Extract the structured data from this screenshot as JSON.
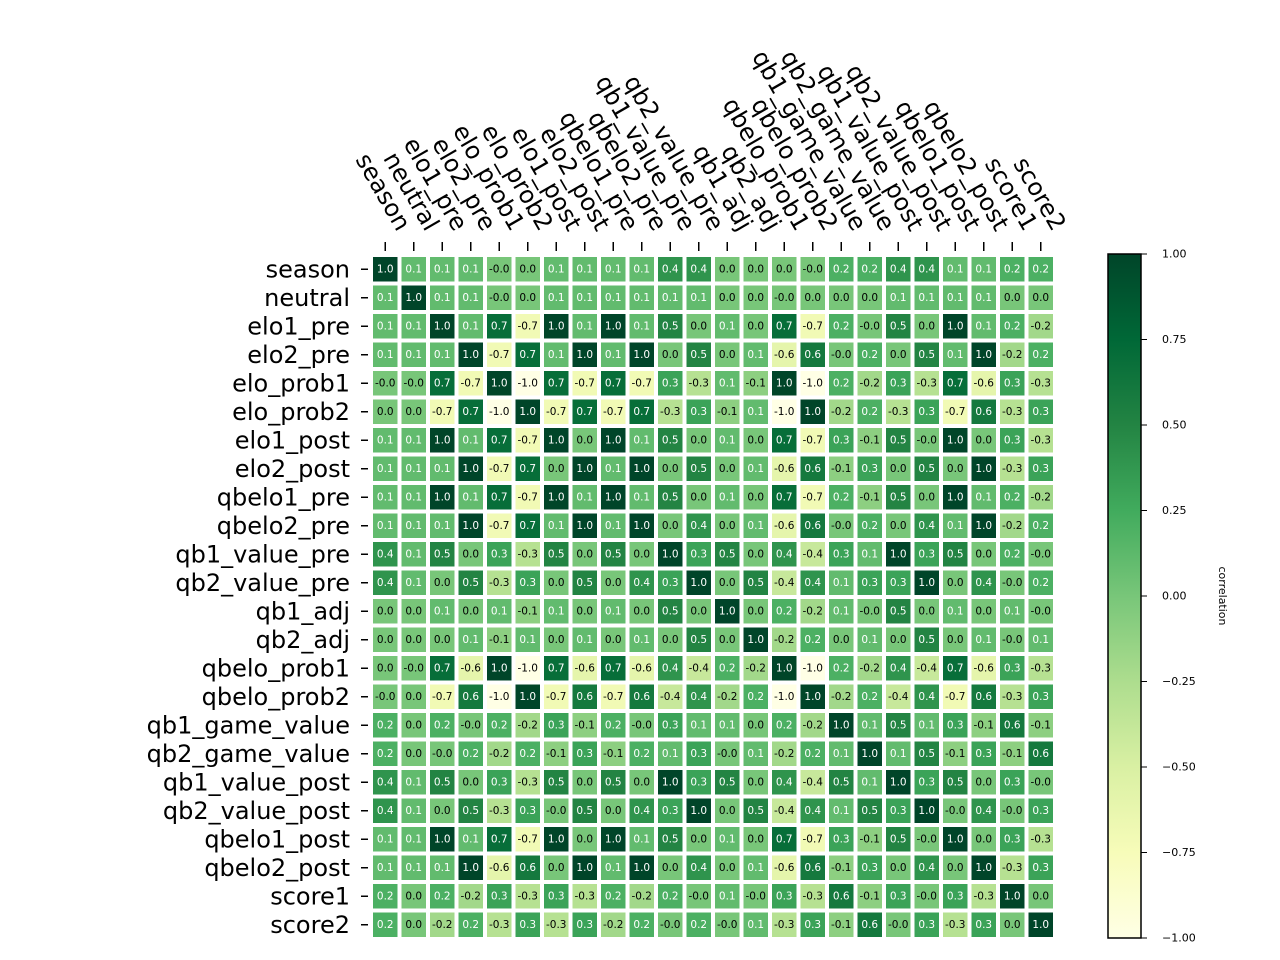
{
  "chart_data": {
    "type": "heatmap",
    "variables": [
      "season",
      "neutral",
      "elo1_pre",
      "elo2_pre",
      "elo_prob1",
      "elo_prob2",
      "elo1_post",
      "elo2_post",
      "qbelo1_pre",
      "qbelo2_pre",
      "qb1_value_pre",
      "qb2_value_pre",
      "qb1_adj",
      "qb2_adj",
      "qbelo_prob1",
      "qbelo_prob2",
      "qb1_game_value",
      "qb2_game_value",
      "qb1_value_post",
      "qb2_value_post",
      "qbelo1_post",
      "qbelo2_post",
      "score1",
      "score2"
    ],
    "cell_labels": [
      [
        "1.0",
        "0.1",
        "0.1",
        "0.1",
        "-0.0",
        "0.0",
        "0.1",
        "0.1",
        "0.1",
        "0.1",
        "0.4",
        "0.4",
        "0.0",
        "0.0",
        "0.0",
        "-0.0",
        "0.2",
        "0.2",
        "0.4",
        "0.4",
        "0.1",
        "0.1",
        "0.2",
        "0.2"
      ],
      [
        "0.1",
        "1.0",
        "0.1",
        "0.1",
        "-0.0",
        "0.0",
        "0.1",
        "0.1",
        "0.1",
        "0.1",
        "0.1",
        "0.1",
        "0.0",
        "0.0",
        "-0.0",
        "0.0",
        "0.0",
        "0.0",
        "0.1",
        "0.1",
        "0.1",
        "0.1",
        "0.0",
        "0.0"
      ],
      [
        "0.1",
        "0.1",
        "1.0",
        "0.1",
        "0.7",
        "-0.7",
        "1.0",
        "0.1",
        "1.0",
        "0.1",
        "0.5",
        "0.0",
        "0.1",
        "0.0",
        "0.7",
        "-0.7",
        "0.2",
        "-0.0",
        "0.5",
        "0.0",
        "1.0",
        "0.1",
        "0.2",
        "-0.2"
      ],
      [
        "0.1",
        "0.1",
        "0.1",
        "1.0",
        "-0.7",
        "0.7",
        "0.1",
        "1.0",
        "0.1",
        "1.0",
        "0.0",
        "0.5",
        "0.0",
        "0.1",
        "-0.6",
        "0.6",
        "-0.0",
        "0.2",
        "0.0",
        "0.5",
        "0.1",
        "1.0",
        "-0.2",
        "0.2"
      ],
      [
        "-0.0",
        "-0.0",
        "0.7",
        "-0.7",
        "1.0",
        "-1.0",
        "0.7",
        "-0.7",
        "0.7",
        "-0.7",
        "0.3",
        "-0.3",
        "0.1",
        "-0.1",
        "1.0",
        "-1.0",
        "0.2",
        "-0.2",
        "0.3",
        "-0.3",
        "0.7",
        "-0.6",
        "0.3",
        "-0.3"
      ],
      [
        "0.0",
        "0.0",
        "-0.7",
        "0.7",
        "-1.0",
        "1.0",
        "-0.7",
        "0.7",
        "-0.7",
        "0.7",
        "-0.3",
        "0.3",
        "-0.1",
        "0.1",
        "-1.0",
        "1.0",
        "-0.2",
        "0.2",
        "-0.3",
        "0.3",
        "-0.7",
        "0.6",
        "-0.3",
        "0.3"
      ],
      [
        "0.1",
        "0.1",
        "1.0",
        "0.1",
        "0.7",
        "-0.7",
        "1.0",
        "0.0",
        "1.0",
        "0.1",
        "0.5",
        "0.0",
        "0.1",
        "0.0",
        "0.7",
        "-0.7",
        "0.3",
        "-0.1",
        "0.5",
        "-0.0",
        "1.0",
        "0.0",
        "0.3",
        "-0.3"
      ],
      [
        "0.1",
        "0.1",
        "0.1",
        "1.0",
        "-0.7",
        "0.7",
        "0.0",
        "1.0",
        "0.1",
        "1.0",
        "0.0",
        "0.5",
        "0.0",
        "0.1",
        "-0.6",
        "0.6",
        "-0.1",
        "0.3",
        "0.0",
        "0.5",
        "0.0",
        "1.0",
        "-0.3",
        "0.3"
      ],
      [
        "0.1",
        "0.1",
        "1.0",
        "0.1",
        "0.7",
        "-0.7",
        "1.0",
        "0.1",
        "1.0",
        "0.1",
        "0.5",
        "0.0",
        "0.1",
        "0.0",
        "0.7",
        "-0.7",
        "0.2",
        "-0.1",
        "0.5",
        "0.0",
        "1.0",
        "0.1",
        "0.2",
        "-0.2"
      ],
      [
        "0.1",
        "0.1",
        "0.1",
        "1.0",
        "-0.7",
        "0.7",
        "0.1",
        "1.0",
        "0.1",
        "1.0",
        "0.0",
        "0.4",
        "0.0",
        "0.1",
        "-0.6",
        "0.6",
        "-0.0",
        "0.2",
        "0.0",
        "0.4",
        "0.1",
        "1.0",
        "-0.2",
        "0.2"
      ],
      [
        "0.4",
        "0.1",
        "0.5",
        "0.0",
        "0.3",
        "-0.3",
        "0.5",
        "0.0",
        "0.5",
        "0.0",
        "1.0",
        "0.3",
        "0.5",
        "0.0",
        "0.4",
        "-0.4",
        "0.3",
        "0.1",
        "1.0",
        "0.3",
        "0.5",
        "0.0",
        "0.2",
        "-0.0"
      ],
      [
        "0.4",
        "0.1",
        "0.0",
        "0.5",
        "-0.3",
        "0.3",
        "0.0",
        "0.5",
        "0.0",
        "0.4",
        "0.3",
        "1.0",
        "0.0",
        "0.5",
        "-0.4",
        "0.4",
        "0.1",
        "0.3",
        "0.3",
        "1.0",
        "0.0",
        "0.4",
        "-0.0",
        "0.2"
      ],
      [
        "0.0",
        "0.0",
        "0.1",
        "0.0",
        "0.1",
        "-0.1",
        "0.1",
        "0.0",
        "0.1",
        "0.0",
        "0.5",
        "0.0",
        "1.0",
        "0.0",
        "0.2",
        "-0.2",
        "0.1",
        "-0.0",
        "0.5",
        "0.0",
        "0.1",
        "0.0",
        "0.1",
        "-0.0"
      ],
      [
        "0.0",
        "0.0",
        "0.0",
        "0.1",
        "-0.1",
        "0.1",
        "0.0",
        "0.1",
        "0.0",
        "0.1",
        "0.0",
        "0.5",
        "0.0",
        "1.0",
        "-0.2",
        "0.2",
        "0.0",
        "0.1",
        "0.0",
        "0.5",
        "0.0",
        "0.1",
        "-0.0",
        "0.1"
      ],
      [
        "0.0",
        "-0.0",
        "0.7",
        "-0.6",
        "1.0",
        "-1.0",
        "0.7",
        "-0.6",
        "0.7",
        "-0.6",
        "0.4",
        "-0.4",
        "0.2",
        "-0.2",
        "1.0",
        "-1.0",
        "0.2",
        "-0.2",
        "0.4",
        "-0.4",
        "0.7",
        "-0.6",
        "0.3",
        "-0.3"
      ],
      [
        "-0.0",
        "0.0",
        "-0.7",
        "0.6",
        "-1.0",
        "1.0",
        "-0.7",
        "0.6",
        "-0.7",
        "0.6",
        "-0.4",
        "0.4",
        "-0.2",
        "0.2",
        "-1.0",
        "1.0",
        "-0.2",
        "0.2",
        "-0.4",
        "0.4",
        "-0.7",
        "0.6",
        "-0.3",
        "0.3"
      ],
      [
        "0.2",
        "0.0",
        "0.2",
        "-0.0",
        "0.2",
        "-0.2",
        "0.3",
        "-0.1",
        "0.2",
        "-0.0",
        "0.3",
        "0.1",
        "0.1",
        "0.0",
        "0.2",
        "-0.2",
        "1.0",
        "0.1",
        "0.5",
        "0.1",
        "0.3",
        "-0.1",
        "0.6",
        "-0.1"
      ],
      [
        "0.2",
        "0.0",
        "-0.0",
        "0.2",
        "-0.2",
        "0.2",
        "-0.1",
        "0.3",
        "-0.1",
        "0.2",
        "0.1",
        "0.3",
        "-0.0",
        "0.1",
        "-0.2",
        "0.2",
        "0.1",
        "1.0",
        "0.1",
        "0.5",
        "-0.1",
        "0.3",
        "-0.1",
        "0.6"
      ],
      [
        "0.4",
        "0.1",
        "0.5",
        "0.0",
        "0.3",
        "-0.3",
        "0.5",
        "0.0",
        "0.5",
        "0.0",
        "1.0",
        "0.3",
        "0.5",
        "0.0",
        "0.4",
        "-0.4",
        "0.5",
        "0.1",
        "1.0",
        "0.3",
        "0.5",
        "0.0",
        "0.3",
        "-0.0"
      ],
      [
        "0.4",
        "0.1",
        "0.0",
        "0.5",
        "-0.3",
        "0.3",
        "-0.0",
        "0.5",
        "0.0",
        "0.4",
        "0.3",
        "1.0",
        "0.0",
        "0.5",
        "-0.4",
        "0.4",
        "0.1",
        "0.5",
        "0.3",
        "1.0",
        "-0.0",
        "0.4",
        "-0.0",
        "0.3"
      ],
      [
        "0.1",
        "0.1",
        "1.0",
        "0.1",
        "0.7",
        "-0.7",
        "1.0",
        "0.0",
        "1.0",
        "0.1",
        "0.5",
        "0.0",
        "0.1",
        "0.0",
        "0.7",
        "-0.7",
        "0.3",
        "-0.1",
        "0.5",
        "-0.0",
        "1.0",
        "0.0",
        "0.3",
        "-0.3"
      ],
      [
        "0.1",
        "0.1",
        "0.1",
        "1.0",
        "-0.6",
        "0.6",
        "0.0",
        "1.0",
        "0.1",
        "1.0",
        "0.0",
        "0.4",
        "0.0",
        "0.1",
        "-0.6",
        "0.6",
        "-0.1",
        "0.3",
        "0.0",
        "0.4",
        "0.0",
        "1.0",
        "-0.3",
        "0.3"
      ],
      [
        "0.2",
        "0.0",
        "0.2",
        "-0.2",
        "0.3",
        "-0.3",
        "0.3",
        "-0.3",
        "0.2",
        "-0.2",
        "0.2",
        "-0.0",
        "0.1",
        "-0.0",
        "0.3",
        "-0.3",
        "0.6",
        "-0.1",
        "0.3",
        "-0.0",
        "0.3",
        "-0.3",
        "1.0",
        "0.0"
      ],
      [
        "0.2",
        "0.0",
        "-0.2",
        "0.2",
        "-0.3",
        "0.3",
        "-0.3",
        "0.3",
        "-0.2",
        "0.2",
        "-0.0",
        "0.2",
        "-0.0",
        "0.1",
        "-0.3",
        "0.3",
        "-0.1",
        "0.6",
        "-0.0",
        "0.3",
        "-0.3",
        "0.3",
        "0.0",
        "1.0"
      ]
    ],
    "colormap": "YlGn",
    "vmin": -1.0,
    "vmax": 1.0,
    "colorbar": {
      "label": "correlation",
      "ticks": [
        "1.00",
        "0.75",
        "0.50",
        "0.25",
        "0.00",
        "−0.25",
        "−0.50",
        "−0.75",
        "−1.00"
      ],
      "tick_values": [
        1.0,
        0.75,
        0.5,
        0.25,
        0.0,
        -0.25,
        -0.5,
        -0.75,
        -1.0
      ]
    },
    "colors": [
      "#ffffe5",
      "#f7fcb9",
      "#d9f0a3",
      "#addd8e",
      "#78c679",
      "#41ab5d",
      "#238443",
      "#006837",
      "#004529"
    ]
  }
}
